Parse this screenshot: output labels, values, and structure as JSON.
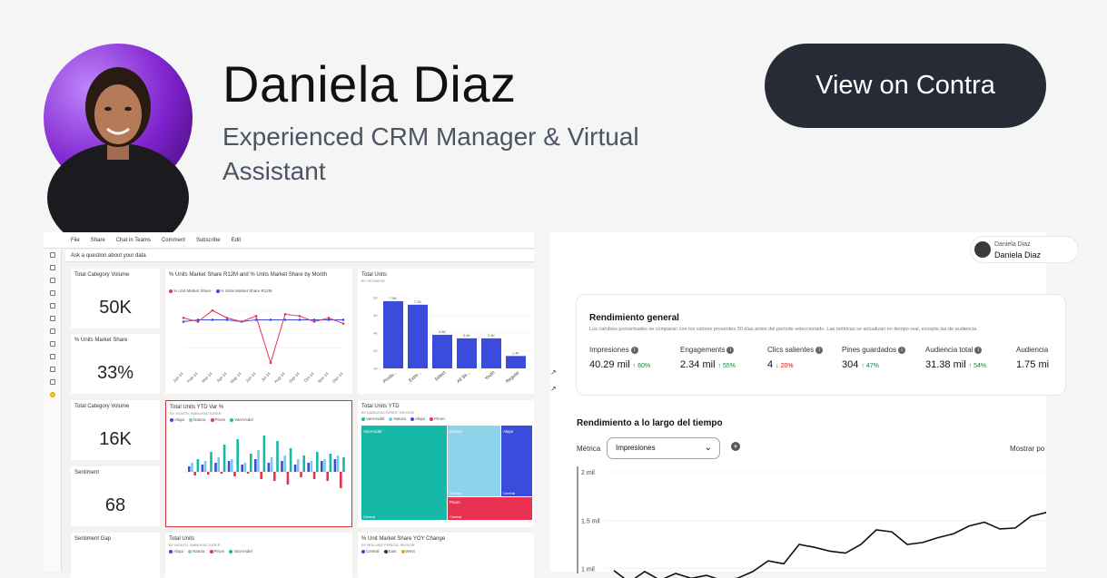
{
  "profile": {
    "name": "Daniela Diaz",
    "tagline": "Experienced CRM Manager & Virtual Assistant",
    "cta_label": "View on Contra"
  },
  "powerbi": {
    "toolbar": [
      "File",
      "Share",
      "Chat in Teams",
      "Comment",
      "Subscribe",
      "Edit"
    ],
    "ask_placeholder": "Ask a question about your data",
    "kpis": [
      {
        "title": "Total Category Volume",
        "value": "50K"
      },
      {
        "title": "% Units Market Share",
        "value": "33%"
      },
      {
        "title": "Total Category Volume",
        "value": "16K"
      },
      {
        "title": "Sentiment",
        "value": "68"
      },
      {
        "title": "Sentiment Gap",
        "value": ""
      }
    ],
    "line_chart": {
      "title": "% Units Market Share R12M and % Units Market Share by Month",
      "legend": [
        "% Unit Market Share",
        "% Units Market Share R12M"
      ],
      "months": [
        "Jan-14",
        "Feb-14",
        "Mar-14",
        "Apr-14",
        "May-14",
        "Jun-14",
        "Jul-14",
        "Aug-14",
        "Sep-14",
        "Oct-14",
        "Nov-14",
        "Dec-14"
      ],
      "series_a": [
        0.36,
        0.34,
        0.4,
        0.36,
        0.34,
        0.37,
        0.12,
        0.38,
        0.37,
        0.34,
        0.36,
        0.33
      ],
      "series_b": [
        0.34,
        0.35,
        0.35,
        0.35,
        0.34,
        0.35,
        0.35,
        0.35,
        0.35,
        0.35,
        0.35,
        0.35
      ]
    },
    "bar_chart": {
      "title": "Total Units",
      "subtitle": "BY SEGMENT",
      "categories": [
        "Produ...",
        "Extre...",
        "Select",
        "All Se...",
        "Youth",
        "Regular"
      ],
      "values": [
        7.6,
        7.2,
        3.8,
        3.4,
        3.4,
        1.4
      ],
      "labels": [
        "7.6K",
        "7.2K",
        "3.8K",
        "3.4K",
        "3.4K",
        "1.4K"
      ]
    },
    "ytd_chart": {
      "title": "Total Units YTD Var %",
      "subtitle": "BY MONTH, MANUFACTURER",
      "legend": [
        "Aliqui",
        "Natura",
        "Pirum",
        "VanArsdel"
      ]
    },
    "treemap": {
      "title": "Total Units YTD",
      "subtitle": "BY MANUFACTURER, REGION",
      "legend": [
        "VanArsdel",
        "Natura",
        "Aliqui",
        "Pirum"
      ],
      "cells": [
        "VanArsdel",
        "Natura",
        "Aliqui",
        "Central",
        "Central",
        "Pirum",
        "Central",
        "Central"
      ]
    },
    "bottom_tiles": [
      {
        "title": "Total Units",
        "subtitle": "BY MONTH, MANUFACTURER",
        "legend": [
          "Aliqui",
          "Natura",
          "Pirum",
          "VanArsdel"
        ]
      },
      {
        "title": "% Unit Market Share YOY Change",
        "subtitle": "BY ROLLING PERIOD, REGION",
        "legend": [
          "Central",
          "East",
          "West"
        ]
      }
    ]
  },
  "analytics": {
    "user_top": "Daniela Diaz",
    "user_bottom": "Daniela Diaz",
    "overview_title": "Rendimiento general",
    "overview_sub": "Los cambios porcentuales se comparan con los valores presentes 30 días antes del período seleccionado. Las métricas se actualizan en tiempo real, excepto las de audiencia.",
    "metrics": [
      {
        "label": "Impresiones",
        "value": "40.29 mil",
        "change": "60%",
        "dir": "up"
      },
      {
        "label": "Engagements",
        "value": "2.34 mil",
        "change": "55%",
        "dir": "up"
      },
      {
        "label": "Clics salientes",
        "value": "4",
        "change": "20%",
        "dir": "down"
      },
      {
        "label": "Pines guardados",
        "value": "304",
        "change": "47%",
        "dir": "up"
      },
      {
        "label": "Audiencia total",
        "value": "31.38 mil",
        "change": "54%",
        "dir": "up"
      },
      {
        "label": "Audiencia",
        "value": "1.75 mi",
        "change": "",
        "dir": ""
      }
    ],
    "trend_title": "Rendimiento a lo largo del tiempo",
    "metric_label": "Métrica",
    "metric_selected": "Impresiones",
    "show_label": "Mostrar po",
    "y_ticks": [
      "2 mil",
      "1.5 mil",
      "1 mil"
    ],
    "trend_values": [
      0.98,
      0.86,
      0.97,
      0.88,
      0.95,
      0.9,
      0.93,
      0.88,
      0.9,
      0.97,
      1.08,
      1.05,
      1.25,
      1.22,
      1.18,
      1.16,
      1.25,
      1.4,
      1.38,
      1.25,
      1.27,
      1.32,
      1.36,
      1.44,
      1.48,
      1.41,
      1.42,
      1.54,
      1.58
    ]
  }
}
